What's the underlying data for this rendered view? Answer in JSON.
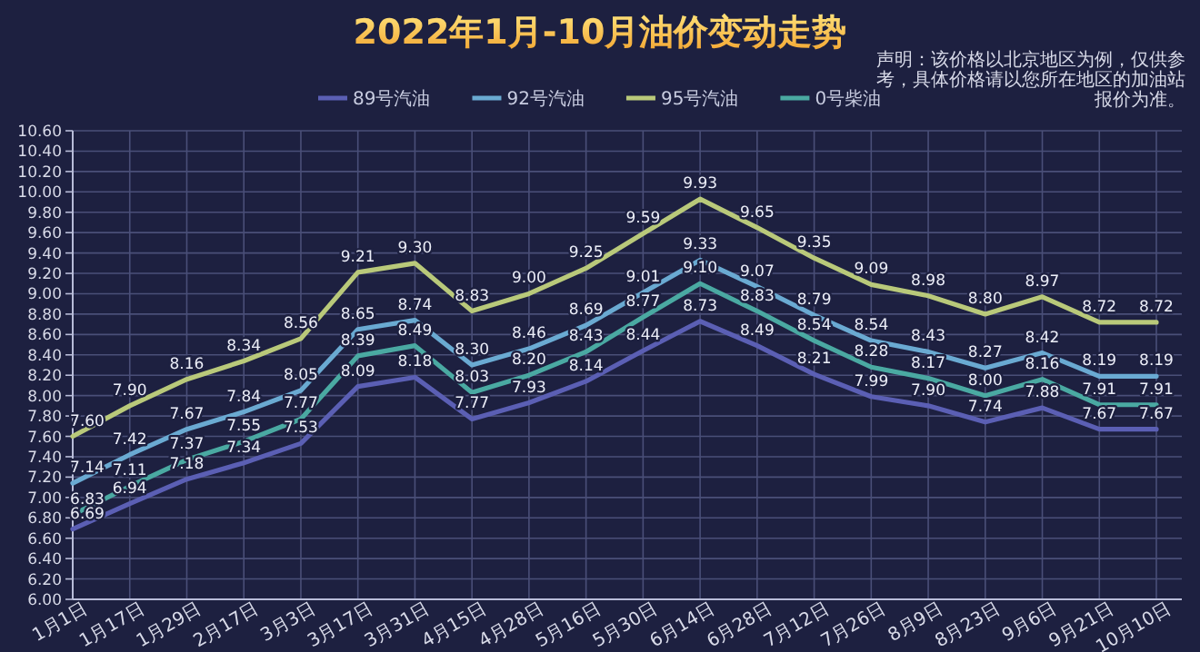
{
  "chart_data": {
    "type": "line",
    "title": "2022年1月-10月油价变动走势",
    "annotations": [
      "声明：该价格以北京地区为例，仅供参考，具体价格请以您所在地区的加油站报价为准。"
    ],
    "categories": [
      "1月1日",
      "1月17日",
      "1月29日",
      "2月17日",
      "3月3日",
      "3月17日",
      "3月31日",
      "4月15日",
      "4月28日",
      "5月16日",
      "5月30日",
      "6月14日",
      "6月28日",
      "7月12日",
      "7月26日",
      "8月9日",
      "8月23日",
      "9月6日",
      "9月21日",
      "10月10日"
    ],
    "series": [
      {
        "name": "89号汽油",
        "color": "#5b5fb4",
        "values": [
          6.69,
          6.94,
          7.18,
          7.34,
          7.53,
          8.09,
          8.18,
          7.77,
          7.93,
          8.14,
          8.44,
          8.73,
          8.49,
          8.21,
          7.99,
          7.9,
          7.74,
          7.88,
          7.67,
          7.67
        ],
        "value_labels": [
          "6.69",
          "6.94",
          "7.18",
          "7.34",
          "7.53",
          "8.09",
          "8.18",
          "7.77",
          "7.93",
          "8.14",
          "8.44",
          "8.73",
          "8.49",
          "8.21",
          "7.99",
          "7.90",
          "7.74",
          "7.88",
          "7.67",
          "7.67"
        ]
      },
      {
        "name": "92号汽油",
        "color": "#6aaad2",
        "values": [
          7.14,
          7.42,
          7.67,
          7.84,
          8.05,
          8.65,
          8.74,
          8.3,
          8.46,
          8.69,
          9.01,
          9.33,
          9.07,
          8.79,
          8.54,
          8.43,
          8.27,
          8.42,
          8.19,
          8.19
        ],
        "value_labels": [
          "7.14",
          "7.42",
          "7.67",
          "7.84",
          "8.05",
          "8.65",
          "8.74",
          "8.30",
          "8.46",
          "8.69",
          "9.01",
          "9.33",
          "9.07",
          "8.79",
          "8.54",
          "8.43",
          "8.27",
          "8.42",
          "8.19",
          "8.19"
        ]
      },
      {
        "name": "95号汽油",
        "color": "#b9c97a",
        "values": [
          7.6,
          7.9,
          8.16,
          8.34,
          8.56,
          9.21,
          9.3,
          8.83,
          9.0,
          9.25,
          9.59,
          9.93,
          9.65,
          9.35,
          9.09,
          8.98,
          8.8,
          8.97,
          8.72,
          8.72
        ],
        "value_labels": [
          "7.60",
          "7.90",
          "8.16",
          "8.34",
          "8.56",
          "9.21",
          "9.30",
          "8.83",
          "9.00",
          "9.25",
          "9.59",
          "9.93",
          "9.65",
          "9.35",
          "9.09",
          "8.98",
          "8.80",
          "8.97",
          "8.72",
          "8.72"
        ]
      },
      {
        "name": "0号柴油",
        "color": "#4aa9a2",
        "values": [
          6.83,
          7.11,
          7.37,
          7.55,
          7.77,
          8.39,
          8.49,
          8.03,
          8.2,
          8.43,
          8.77,
          9.1,
          8.83,
          8.54,
          8.28,
          8.17,
          8.0,
          8.16,
          7.91,
          7.91
        ],
        "value_labels": [
          "6.83",
          "7.11",
          "7.37",
          "7.55",
          "7.77",
          "8.39",
          "8.49",
          "8.03",
          "8.20",
          "8.43",
          "8.77",
          "9.10",
          "8.83",
          "8.54",
          "8.28",
          "8.17",
          "8.00",
          "8.16",
          "7.91",
          "7.91"
        ]
      }
    ],
    "ylim": [
      6,
      10.6
    ],
    "yticks": [
      {
        "value": 6,
        "label": "6.00"
      },
      {
        "value": 6.2,
        "label": "6.20"
      },
      {
        "value": 6.4,
        "label": "6.40"
      },
      {
        "value": 6.6,
        "label": "6.60"
      },
      {
        "value": 6.8,
        "label": "6.80"
      },
      {
        "value": 7,
        "label": "7.00"
      },
      {
        "value": 7.2,
        "label": "7.20"
      },
      {
        "value": 7.4,
        "label": "7.40"
      },
      {
        "value": 7.6,
        "label": "7.60"
      },
      {
        "value": 7.8,
        "label": "7.80"
      },
      {
        "value": 8,
        "label": "8.00"
      },
      {
        "value": 8.2,
        "label": "8.20"
      },
      {
        "value": 8.4,
        "label": "8.40"
      },
      {
        "value": 8.6,
        "label": "8.60"
      },
      {
        "value": 8.8,
        "label": "8.80"
      },
      {
        "value": 9,
        "label": "9.00"
      },
      {
        "value": 9.2,
        "label": "9.20"
      },
      {
        "value": 9.4,
        "label": "9.40"
      },
      {
        "value": 9.6,
        "label": "9.60"
      },
      {
        "value": 9.8,
        "label": "9.80"
      },
      {
        "value": 10,
        "label": "10.00"
      },
      {
        "value": 10.2,
        "label": "10.20"
      },
      {
        "value": 10.4,
        "label": "10.40"
      },
      {
        "value": 10.6,
        "label": "10.60"
      }
    ],
    "grid": true,
    "legend": "top",
    "marker": "none",
    "line_style": "solid"
  }
}
